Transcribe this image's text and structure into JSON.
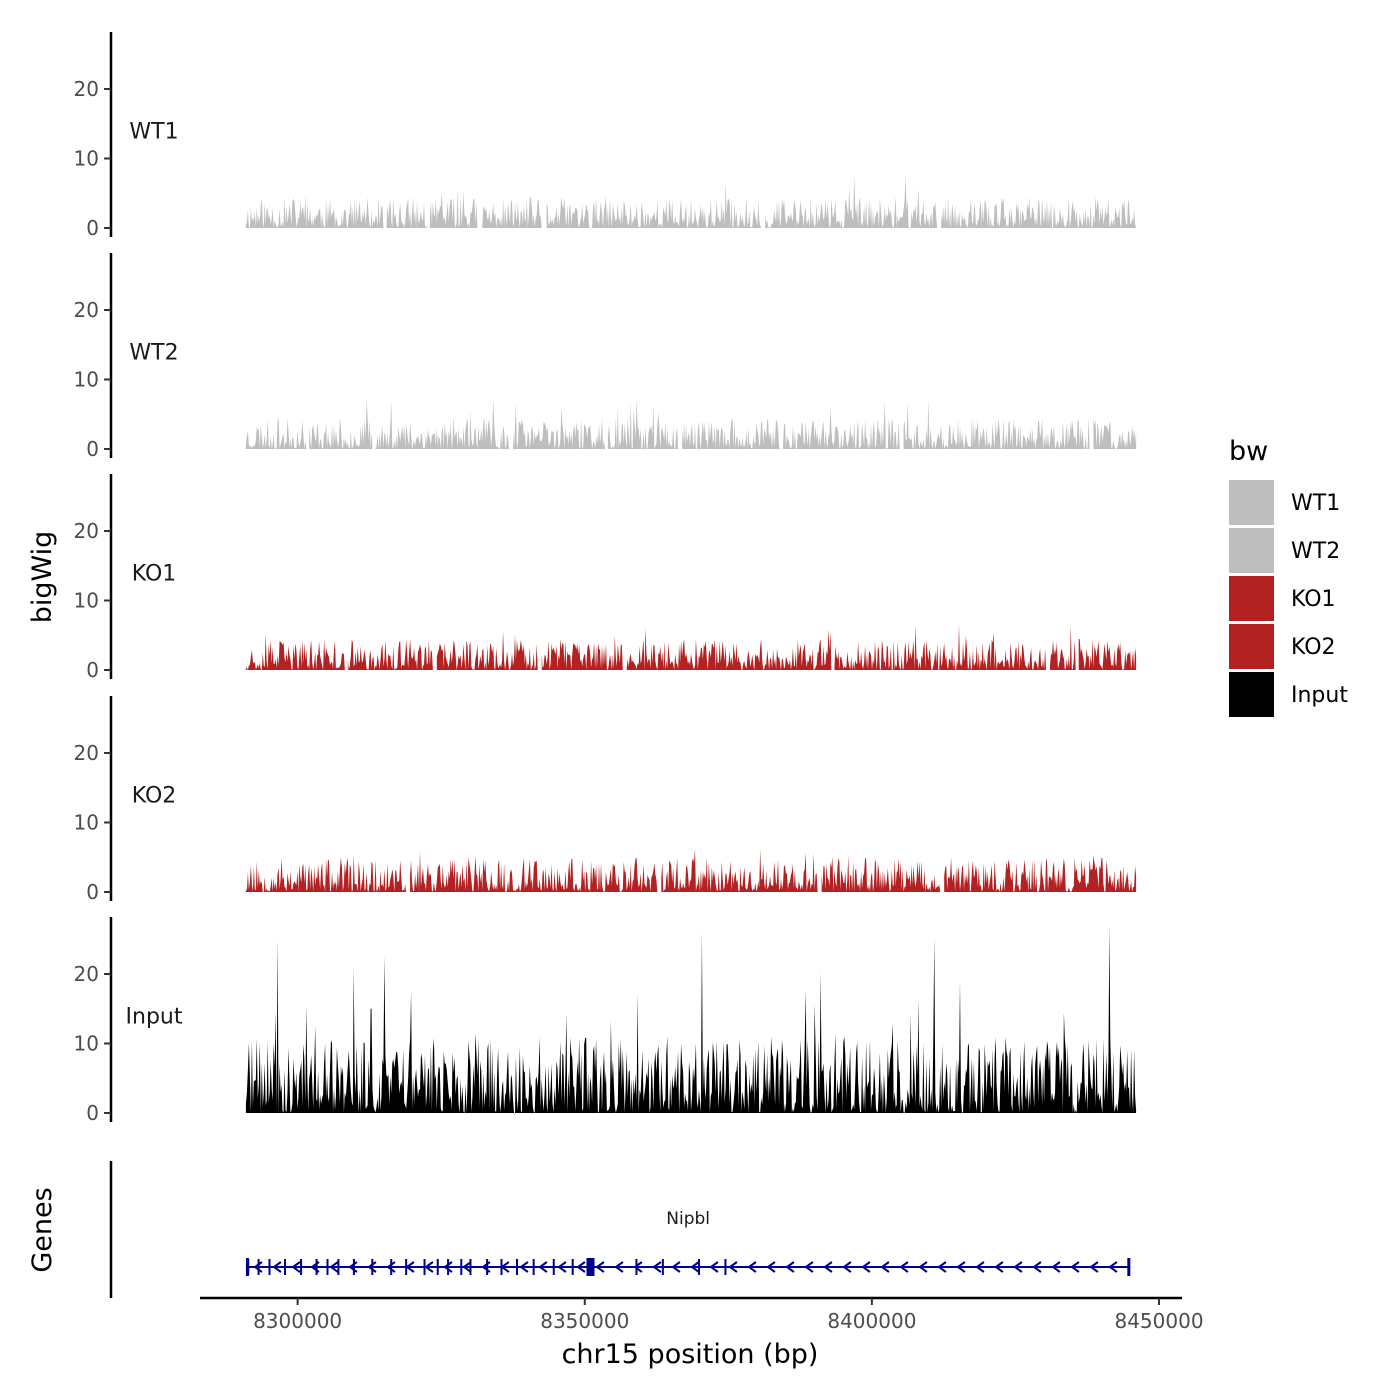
{
  "chart_data": {
    "type": "area",
    "title": "",
    "xlabel": "chr15 position (bp)",
    "ylabel": "bigWig",
    "gene_panel_label": "Genes",
    "xlim": [
      8283000,
      8454000
    ],
    "x_ticks": [
      8300000,
      8350000,
      8400000,
      8450000
    ],
    "x_tick_labels": [
      "8300000",
      "8350000",
      "8400000",
      "8450000"
    ],
    "ylim": [
      0,
      28
    ],
    "y_ticks": [
      0,
      10,
      20
    ],
    "y_tick_labels": [
      "0",
      "10",
      "20"
    ],
    "grid": false,
    "legend": {
      "title": "bw",
      "position": "right",
      "entries": [
        {
          "label": "WT1",
          "color": "#bebebe"
        },
        {
          "label": "WT2",
          "color": "#bebebe"
        },
        {
          "label": "KO1",
          "color": "#b22222"
        },
        {
          "label": "KO2",
          "color": "#b22222"
        },
        {
          "label": "Input",
          "color": "#000000"
        }
      ]
    },
    "x_start": 8291000,
    "x_end": 8446000,
    "series": [
      {
        "name": "WT1",
        "color": "#bebebe",
        "typical_max": 4.5,
        "peak_max": 7.5,
        "seed": 11,
        "gaps": [
          [
            8314800,
            8315300
          ],
          [
            8322400,
            8323000
          ],
          [
            8331300,
            8332000
          ],
          [
            8342400,
            8343200
          ],
          [
            8350800,
            8351200
          ],
          [
            8380700,
            8381300
          ],
          [
            8411300,
            8411900
          ]
        ]
      },
      {
        "name": "WT2",
        "color": "#bebebe",
        "typical_max": 4.5,
        "peak_max": 7.5,
        "seed": 23,
        "gaps": [
          [
            8301400,
            8301900
          ],
          [
            8312900,
            8313500
          ],
          [
            8336800,
            8337400
          ],
          [
            8353400,
            8354000
          ],
          [
            8366200,
            8366800
          ],
          [
            8383900,
            8384500
          ],
          [
            8404800,
            8405400
          ],
          [
            8437900,
            8438500
          ]
        ]
      },
      {
        "name": "KO1",
        "color": "#b22222",
        "typical_max": 4.5,
        "peak_max": 7,
        "seed": 37,
        "gaps": [
          [
            8308200,
            8308700
          ],
          [
            8323500,
            8324100
          ],
          [
            8341800,
            8342400
          ],
          [
            8356600,
            8357200
          ],
          [
            8392800,
            8393400
          ],
          [
            8430300,
            8430900
          ],
          [
            8435400,
            8436000
          ]
        ]
      },
      {
        "name": "KO2",
        "color": "#b22222",
        "typical_max": 5,
        "peak_max": 6.5,
        "seed": 53,
        "gaps": [
          [
            8318900,
            8319500
          ],
          [
            8362600,
            8363200
          ],
          [
            8390500,
            8391100
          ],
          [
            8411900,
            8412500
          ]
        ]
      },
      {
        "name": "Input",
        "color": "#000000",
        "typical_max": 11,
        "peak_max": 27,
        "seed": 71,
        "gaps": [],
        "peaks": [
          [
            8296200,
            14.5
          ],
          [
            8303100,
            12.5
          ],
          [
            8312800,
            15
          ],
          [
            8331000,
            11.5
          ],
          [
            8364400,
            11
          ],
          [
            8393700,
            11.5
          ],
          [
            8419700,
            10
          ],
          [
            8433400,
            14.5
          ],
          [
            8441300,
            27
          ]
        ]
      }
    ],
    "genes": [
      {
        "name": "Nipbl",
        "start": 8291000,
        "end": 8445000,
        "strand": "-",
        "color": "#00008b",
        "exons": [
          8291400,
          8293200,
          8295100,
          8297800,
          8300600,
          8303300,
          8305200,
          8307100,
          8309800,
          8313000,
          8316300,
          8318900,
          8322100,
          8324400,
          8326200,
          8328500,
          8330100,
          8333000,
          8335500,
          8338200,
          8341100,
          8344600,
          8347900,
          8351000,
          8359000,
          8363600,
          8369900,
          8374500
        ]
      }
    ]
  }
}
